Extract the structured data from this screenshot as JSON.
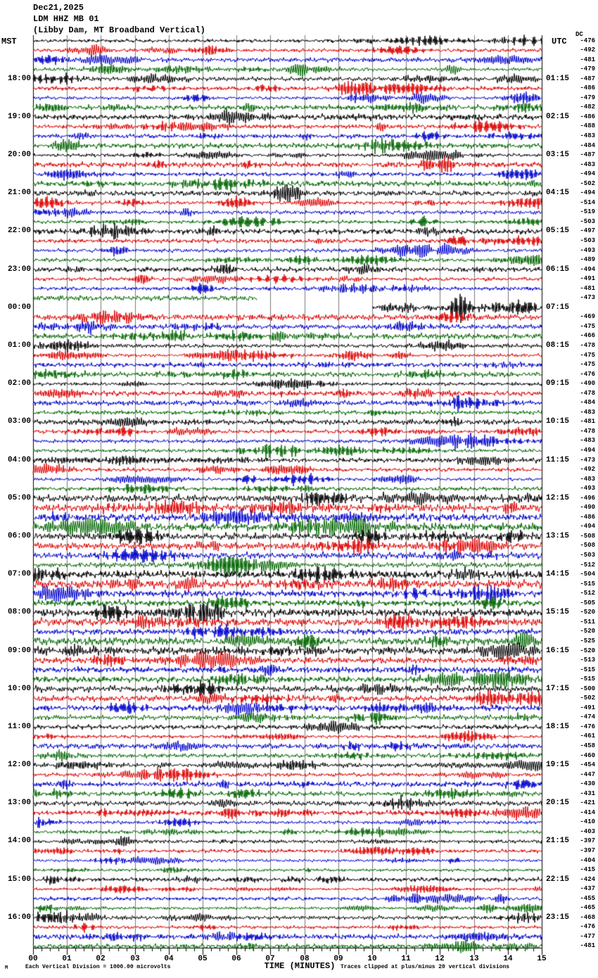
{
  "title": {
    "line1": "Dec21,2025",
    "line2": "LDM HHZ MB 01",
    "line3": "(Libby Dam, MT Broadband Vertical)"
  },
  "axes": {
    "left_header": "MST",
    "right_header": "UTC",
    "dc_header": "DC",
    "x_title": "TIME (MINUTES)"
  },
  "footer": {
    "mark": "M",
    "left_note": "Each Vertical Division = 1000.00 microvolts",
    "right_note": "Traces clipped at plus/minus 20 vertical divisions"
  },
  "chart_data": {
    "type": "line",
    "subtype": "helicorder-seismogram",
    "station": "LDM HHZ MB 01",
    "station_description": "Libby Dam, MT Broadband Vertical",
    "date": "Dec21,2025",
    "rows": 96,
    "minutes_per_row": 15,
    "x_range": [
      0,
      15
    ],
    "x_ticks": [
      "00",
      "01",
      "02",
      "03",
      "04",
      "05",
      "06",
      "07",
      "08",
      "09",
      "10",
      "11",
      "12",
      "13",
      "14",
      "15"
    ],
    "label_every_n_rows": 4,
    "first_labeled_row": 4,
    "left_time_labels_mst": [
      "18:00",
      "19:00",
      "20:00",
      "21:00",
      "22:00",
      "23:00",
      "00:00",
      "01:00",
      "02:00",
      "03:00",
      "04:00",
      "05:00",
      "06:00",
      "07:00",
      "08:00",
      "09:00",
      "10:00",
      "11:00",
      "12:00",
      "13:00",
      "14:00",
      "15:00",
      "16:00"
    ],
    "right_time_labels_utc": [
      "01:15",
      "02:15",
      "03:15",
      "04:15",
      "05:15",
      "06:15",
      "07:15",
      "08:15",
      "09:15",
      "10:15",
      "11:15",
      "12:15",
      "13:15",
      "14:15",
      "15:15",
      "16:15",
      "17:15",
      "18:15",
      "19:15",
      "20:15",
      "21:15",
      "22:15",
      "23:15"
    ],
    "dc_offsets": [
      -476,
      -492,
      -481,
      -479,
      -487,
      -486,
      -479,
      -482,
      -486,
      -488,
      -483,
      -484,
      -487,
      -483,
      -494,
      -502,
      -494,
      -514,
      -519,
      -503,
      -497,
      -503,
      -493,
      -489,
      -494,
      -491,
      -481,
      -473,
      null,
      -469,
      -475,
      -466,
      -478,
      -475,
      -475,
      -476,
      -490,
      -478,
      -484,
      -483,
      -481,
      -478,
      -483,
      -494,
      -473,
      -492,
      -483,
      -493,
      -496,
      -490,
      -486,
      -494,
      -508,
      -508,
      -503,
      -512,
      -504,
      -515,
      -512,
      -505,
      -520,
      -511,
      -520,
      -525,
      -520,
      -513,
      -515,
      -515,
      -500,
      -502,
      -491,
      -474,
      -476,
      -461,
      -458,
      -460,
      -454,
      -447,
      -430,
      -431,
      -421,
      -414,
      -410,
      -403,
      -397,
      -397,
      -404,
      -415,
      -424,
      -437,
      -455,
      -465,
      -468,
      -476,
      -477,
      -481
    ],
    "trace_color_cycle": [
      "#000000",
      "#dd0000",
      "#0000cc",
      "#006600"
    ],
    "grid_color": "#7a7a7a",
    "border_color": "#000000",
    "data_gap": {
      "start_row": 27,
      "start_minute": 6.6,
      "end_row": 28,
      "end_minute": 10.0
    },
    "event": {
      "row": 28,
      "center_minute": 12.6
    },
    "clip_divisions": 20
  }
}
